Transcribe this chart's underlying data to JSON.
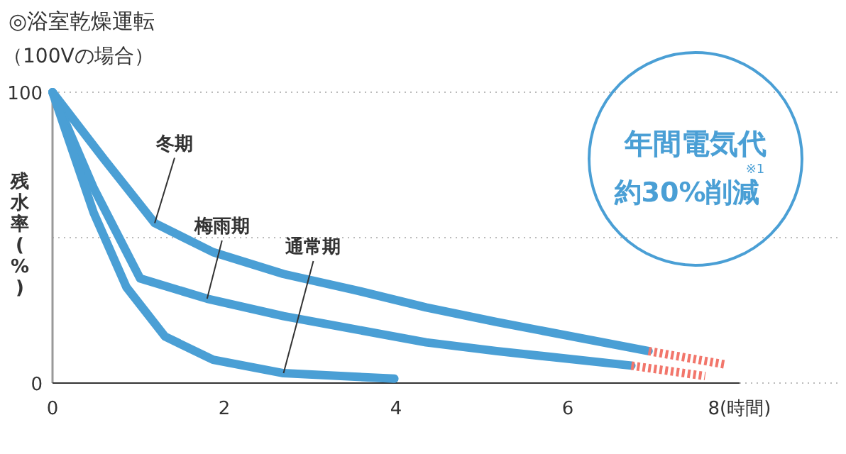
{
  "chart_data": {
    "type": "line",
    "title": "◎浴室乾燥運転",
    "subtitle": "（100Vの場合）",
    "ylabel": "残水率(%)",
    "xlim": [
      0,
      8
    ],
    "ylim": [
      0,
      100
    ],
    "xticks": [
      0,
      2,
      4,
      6,
      {
        "value": 8,
        "label": "8(時間)"
      }
    ],
    "yticks": [
      0,
      {
        "value": 50,
        "label": null
      },
      100
    ],
    "grid": "y",
    "line_style": "solid",
    "marker": "none",
    "series": [
      {
        "color": "#4a9fd5",
        "x": [
          0,
          0.6,
          1.19,
          1.87,
          2.69,
          3.52,
          4.35,
          5.17,
          6.94
        ],
        "values": [
          100,
          77,
          55,
          45,
          37.5,
          32,
          26,
          21,
          11
        ]
      },
      {
        "color": "#4a9fd5",
        "x": [
          0,
          0.48,
          1.02,
          1.8,
          2.69,
          3.52,
          4.35,
          5.17,
          6.74
        ],
        "values": [
          100,
          67,
          36,
          29,
          23,
          18.5,
          14,
          11,
          6
        ]
      },
      {
        "color": "#4a9fd5",
        "x": [
          0,
          0.48,
          0.86,
          1.31,
          1.87,
          2.69,
          3.98
        ],
        "values": [
          100,
          58.5,
          33,
          16,
          8,
          3.4,
          1.5
        ]
      },
      {
        "color": "#f2766b",
        "line_style": "dashed",
        "x": [
          6.94,
          7.85
        ],
        "values": [
          11,
          6.3
        ]
      },
      {
        "color": "#f2766b",
        "line_style": "dashed",
        "x": [
          6.74,
          7.6
        ],
        "values": [
          6,
          2.4
        ]
      }
    ],
    "annotations": [
      {
        "text": "冬期",
        "x": 1.19,
        "y": 55
      },
      {
        "text": "梅雨期",
        "x": 1.8,
        "y": 29
      },
      {
        "text": "通常期",
        "x": 2.69,
        "y": 3.4
      },
      "年間電気代",
      "約30%削減",
      "※1"
    ]
  }
}
